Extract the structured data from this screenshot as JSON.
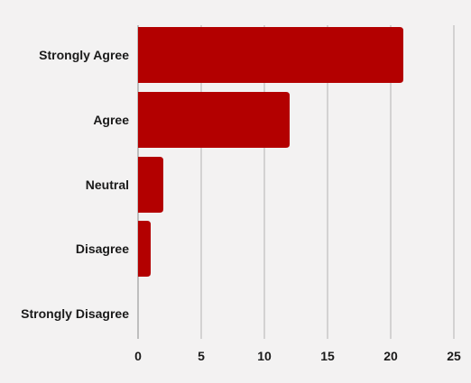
{
  "chart_data": {
    "type": "bar",
    "orientation": "horizontal",
    "categories": [
      "Strongly Agree",
      "Agree",
      "Neutral",
      "Disagree",
      "Strongly Disagree"
    ],
    "values": [
      21,
      12,
      2,
      1,
      0
    ],
    "xticks": [
      "0",
      "5",
      "10",
      "15",
      "20",
      "25"
    ],
    "xlim": [
      0,
      25
    ],
    "title": "",
    "xlabel": "",
    "ylabel": "",
    "grid": "vertical",
    "legend": "none",
    "colors": {
      "bar": "#b30000",
      "background": "#f3f2f2",
      "grid": "#b3b3b3"
    }
  }
}
